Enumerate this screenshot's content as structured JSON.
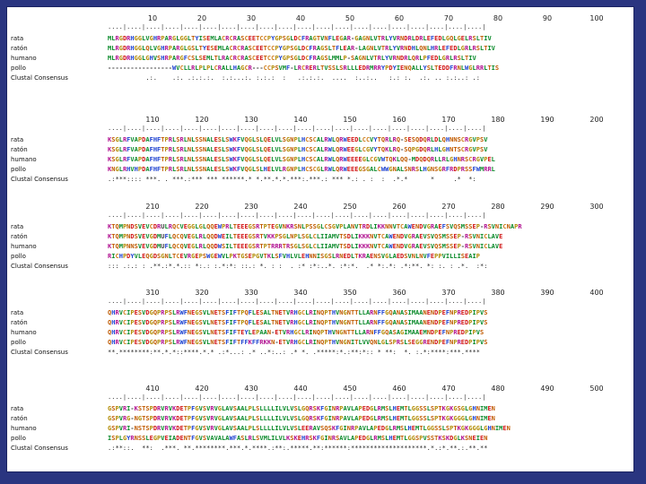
{
  "alignment": {
    "labels": [
      "rata",
      "ratón",
      "humano",
      "pollo",
      "Clustal Consensus"
    ],
    "blocks": [
      {
        "ruler": [
          "10",
          "20",
          "30",
          "40",
          "50",
          "60",
          "70",
          "80",
          "90",
          "100"
        ],
        "rows": [
          "MLRGDRHGGLVGHRPARGLGGLTYISEMLACRCRASCEETCCPYGPSGLDCFRAGTVNFLEGAR-GAGNLVTRLYVRNDRLDRLEFEDLGQLGELRSLTIV",
          "MLRGDRHGGLQLVGHRPARGLGSLTYESEMLACRCRASCEETCCPYGPSGLDCFRAGSLTFLEAR-LAGNLVTRLYVRNDHLQNLHRLEFEDLGRLRSLTIV",
          "MLRGDRHGGLGHVSHRPARGFCSLSEMLTLRACRCRASCEETCCPYGPSGLDCFRAGSLMMLP-SAGNLVTRLYVRNDRLQRLPFEDLGRLRSLTIV",
          "-----------------WVCLLRLPLPLCRALLHAGCR---CCPSVMF-LRCRERLTVSSLSRLLLEDRMRRYPDYIENQALLYSLTEDDFRNLWGLRRLTIS",
          "          .:.    .:. .:.:.:.  :.:...:. :.:.:  :   .:.:.:.  ....  :..:..   :.: :.  .:. .. :.:..: .: "
        ]
      },
      {
        "ruler": [
          "110",
          "120",
          "130",
          "140",
          "150",
          "160",
          "170",
          "180",
          "190",
          "200"
        ],
        "rows": [
          "KSGLRFVAPDAFHFTPRLSRLNLSSNALESLSWKFVQGLSLQELVLSGNPLHCSCALRWLQRWEEDLCCVYTQRLRQ-SESQDQRLDLQHNNSCRGVPSV",
          "KSGLRFVAPDAFHFTPRLSRLNLSSNALESLSWKFVQGLSLQELVLSGNPLHCSCALRWLQRWEEGLCGVYTQKLRQ-SQPGDQRLHLGHNTSCRGVPSV",
          "KSGLRFVAPDAFHFTPRLSRLNLSSNALESLSWKFVQGLSLQELVLSGNPLHCSCALRWLQRWEEEEGLCGVWTQKLQQ-MDQDQRLLRLGHNRSCRGVPEL",
          "KNGLRHVHPDAFHFTPRLSRLNLSSNALESLSWKFVQGLSLHELVLRGNPLHCSCGLRWLQRWEEEGSGALCWWGNALSNRSLHGNSGRFRDPRSSFWMRRL",
          ".:***:::: ***. . ***.:*** *** ******.* *.**.*.*.***:.***.: *** *.: . :  :  .*.*      *     .*  *:  "
        ]
      },
      {
        "ruler": [
          "210",
          "220",
          "230",
          "240",
          "250",
          "260",
          "270",
          "280",
          "290",
          "300"
        ],
        "rows": [
          "KTQMPNDSVEVCDRULRQCVEGGLGLQQEWPRLTEEEGSRTPTEGVNKRSNLPSSGLCSGVPLANVTRDLIKKNNVTCAWENDVGRAEFSVQSMSSEP-RSVNICNAPR",
          "KTQMPNDSVEVGDMUFLQCQVEGLRLQQDWEILTEEEGSRTVKKPSGLNPLSGLCLIIAMVTSDLIKKKNVTCAWENDVGRAEVSVQSMSSEP-RSVNICLAVE",
          "KTQMPNNSVEVGDMUFLQCQVEGLRLQQDWSILTEEEGSRTPTRRRTRSGLSGLCLIIAMVTSDLIKKKNVTCAWENDVGRAEVSVQSMSSEP-RSVNICLAVE",
          "RICHPDYVLEQGDSGNLTCEVRGEPSWGEWVLPKTGSEPGVTKLSFVHLVLEHNNISGSLRNEDLTKRAENSVGLAEDSVNLNVFEPPVILLISEAIP",
          "::: .:.: : .**.:*.*.:: *:.: :.*:*: ::.: *. : :  . :* :*:..*. :*:*.  .* *:.*: .*:**. *: :. : .*.  :*:"
        ]
      },
      {
        "ruler": [
          "310",
          "320",
          "330",
          "340",
          "350",
          "360",
          "370",
          "380",
          "390",
          "400"
        ],
        "rows": [
          "QHRVCIPESVDGQPRPSLRWFNEGSVLNETSFIFTPQFLESALTNETVRHGCLRINQPTHVNGNTTLLARNFFGQANASIMAANENDPEFNPREDPIPVS",
          "QHRVCIPESVDGQPRPSLRWFNEGSVLNETSFIFTPQFLESALTNETVRHGCLRINQPTHVNGNTTLLARNFFGQANASIMAANENDPEFNPREDPIPVS",
          "QHRVCIPESVDGQPRPSLRWFNEGSVLNETSFIFTEYLEPAAN-ETVRHGCLRINQPTHVNGNTTLLARNFFGQASAGIMAAEMNDPEFNPREDPIPVS",
          "QHRVCIPESVDGQPRPSLRWFNEGSVLNETSFIFTFFKFFRKKN-ETVRHGCLRINQPTHVNGNITLVVQNLGLSPRSLSEGGRENDPEFNPREDPIPVS",
          "**.********:**.*.*::****.*.* .:*...: .* ..*:..: .* *. .*****:*.:**:*:: * **:  *. :.*:****:***.****"
        ]
      },
      {
        "ruler": [
          "410",
          "420",
          "430",
          "440",
          "450",
          "460",
          "470",
          "480",
          "490",
          "500"
        ],
        "rows": [
          "GSPVRI-KSTSPDRVRVKDETPFGVSVRVGLAVSAALPLSLLLLILVLVSLGQRSKFGINRPAVLAPEDGLRMSLHEMTLGGSSLSPTKGKGSGLGHNIMEN",
          "GSPVRG-NGTSPDRVRVKDETPFGVSVRVGLAVSAALPLSLLLLILVLVSLGQRSKFGINRPAVLAPEDGLRMSLHEMTLGGSSLSPTKGKGGGLGHNIMEN",
          "GSPVRI-NSTSPDRVRVKDETPFGVSVRVGLAVSAALPLSLLLLILVLVSLEERAVSQSKFGINRPAVLAPEDGLRMSLHEMTLGGSSLSPTKGKGGGLGHNIMEN",
          "ISPLGYRNSSLEGPVEIADENTFGVSVAVALAWFASLRLSVMLILVLKSKEHRSKFGINRSAVLAPEDGLRMSLHEMTLGGSPVSSTKSKDGLKSNEIEN",
          ".:**::.  **:  .***. **.********.***.*.****.:**:.*****.**:******:********************.*.:*.**.:.**.**"
        ]
      }
    ]
  },
  "colors": {
    "background": "#2a3580",
    "panel": "#ffffff",
    "A": "#0a8a2a",
    "V": "#0a8a2a",
    "I": "#0a8a2a",
    "L": "#0a8a2a",
    "M": "#0a8a2a",
    "F": "#1a3fd0",
    "W": "#1a3fd0",
    "Y": "#1a3fd0",
    "H": "#1a3fd0",
    "S": "#c05a00",
    "T": "#c05a00",
    "N": "#c05a00",
    "Q": "#c05a00",
    "D": "#d01010",
    "E": "#d01010",
    "K": "#b01090",
    "R": "#b01090",
    "G": "#b08a00",
    "P": "#b08a00",
    "C": "#d08020"
  }
}
